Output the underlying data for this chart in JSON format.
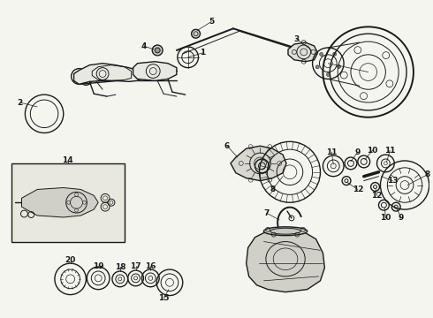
{
  "bg_color": "#f5f5f0",
  "line_color": "#1a1a1a",
  "fig_width": 4.9,
  "fig_height": 3.6,
  "dpi": 100,
  "label_fontsize": 6.5
}
